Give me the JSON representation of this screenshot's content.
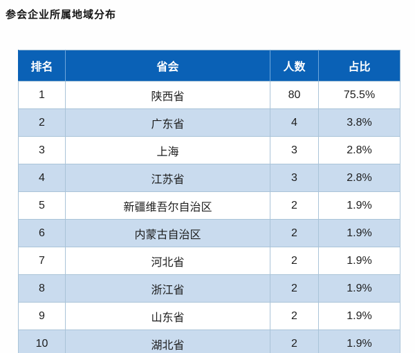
{
  "title": "参会企业所属地域分布",
  "colors": {
    "header_bg": "#0a61b6",
    "header_text": "#ffffff",
    "header_sep": "#6fa7dc",
    "row_bg": "#ffffff",
    "row_alt_bg": "#c9dbee",
    "cell_border": "#a9c3d8",
    "outer_border": "#8fb3cf"
  },
  "chart_data": {
    "type": "table",
    "title": "参会企业所属地域分布",
    "columns": [
      "排名",
      "省会",
      "人数",
      "占比"
    ],
    "rows": [
      [
        "1",
        "陕西省",
        "80",
        "75.5%"
      ],
      [
        "2",
        "广东省",
        "4",
        "3.8%"
      ],
      [
        "3",
        "上海",
        "3",
        "2.8%"
      ],
      [
        "4",
        "江苏省",
        "3",
        "2.8%"
      ],
      [
        "5",
        "新疆维吾尔自治区",
        "2",
        "1.9%"
      ],
      [
        "6",
        "内蒙古自治区",
        "2",
        "1.9%"
      ],
      [
        "7",
        "河北省",
        "2",
        "1.9%"
      ],
      [
        "8",
        "浙江省",
        "2",
        "1.9%"
      ],
      [
        "9",
        "山东省",
        "2",
        "1.9%"
      ],
      [
        "10",
        "湖北省",
        "2",
        "1.9%"
      ]
    ]
  }
}
